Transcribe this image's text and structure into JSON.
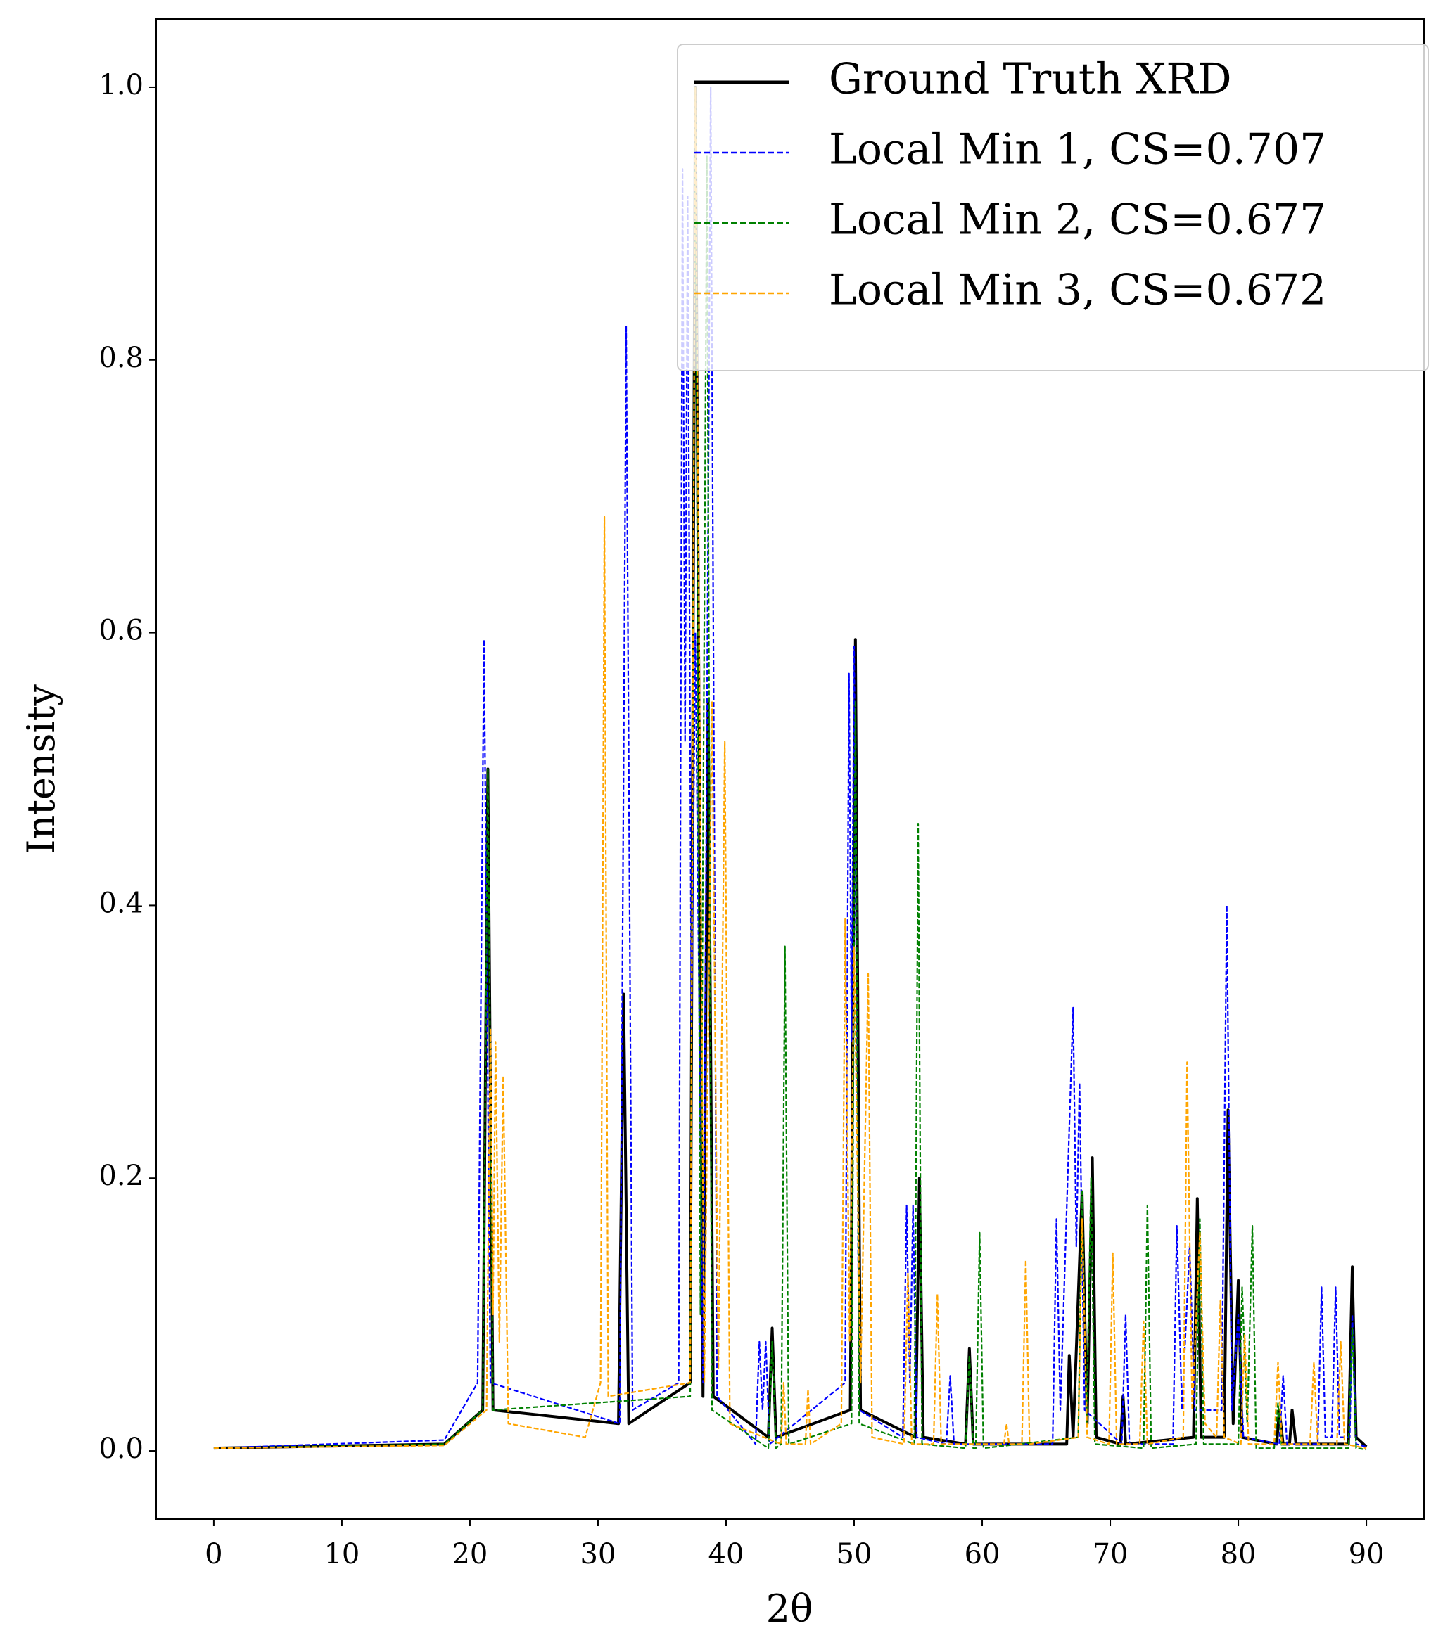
{
  "chart_data": {
    "type": "line",
    "xlabel": "2θ",
    "ylabel": "Intensity",
    "xlim": [
      -4.5,
      94.5
    ],
    "ylim": [
      -0.05,
      1.05
    ],
    "xticks": [
      0,
      10,
      20,
      30,
      40,
      50,
      60,
      70,
      80,
      90
    ],
    "yticks": [
      {
        "value": 0,
        "label": "0.0"
      },
      0.2,
      0.4,
      0.6,
      0.8,
      {
        "value": 1,
        "label": "1.0"
      }
    ],
    "legend": "upper right",
    "grid": false,
    "series": [
      {
        "name": "Ground Truth XRD",
        "color": "#000000",
        "linestyle": "solid",
        "x": [
          0,
          18,
          21.0,
          21.4,
          21.8,
          31.6,
          32.0,
          32.4,
          37.2,
          37.6,
          38.2,
          38.6,
          39.0,
          43.3,
          43.6,
          43.9,
          49.7,
          50.1,
          50.5,
          54.8,
          55.1,
          55.4,
          58.7,
          59.0,
          59.3,
          66.6,
          66.8,
          67.1,
          67.8,
          68.2,
          68.6,
          68.9,
          70.8,
          71.0,
          71.2,
          76.5,
          76.8,
          77.1,
          78.9,
          79.2,
          79.6,
          80.0,
          80.3,
          83.0,
          83.2,
          83.5,
          84.0,
          84.2,
          84.5,
          88.6,
          88.9,
          89.2,
          90
        ],
        "values": [
          0.002,
          0.005,
          0.03,
          0.5,
          0.03,
          0.02,
          0.335,
          0.02,
          0.05,
          1.0,
          0.04,
          0.55,
          0.04,
          0.01,
          0.09,
          0.01,
          0.03,
          0.595,
          0.03,
          0.01,
          0.2,
          0.01,
          0.005,
          0.075,
          0.005,
          0.005,
          0.07,
          0.01,
          0.19,
          0.02,
          0.215,
          0.01,
          0.005,
          0.04,
          0.005,
          0.01,
          0.185,
          0.01,
          0.01,
          0.25,
          0.02,
          0.125,
          0.01,
          0.005,
          0.03,
          0.005,
          0.005,
          0.03,
          0.005,
          0.005,
          0.135,
          0.01,
          0.003
        ]
      },
      {
        "name": "Local Min 1, CS=0.707",
        "color": "#0000ff",
        "linestyle": "dashed",
        "x": [
          0,
          18,
          20.6,
          21.1,
          21.6,
          31.7,
          32.2,
          32.7,
          36.3,
          36.6,
          36.8,
          37.0,
          37.3,
          37.6,
          38.2,
          38.8,
          39.3,
          42.3,
          42.6,
          42.85,
          43.1,
          43.4,
          49.3,
          49.6,
          49.8,
          50.0,
          50.4,
          53.8,
          54.1,
          54.35,
          54.6,
          54.9,
          57.2,
          57.5,
          57.8,
          65.5,
          65.8,
          66.1,
          67.1,
          67.35,
          67.6,
          68.0,
          70.9,
          71.2,
          71.5,
          74.9,
          75.2,
          75.6,
          76.2,
          76.6,
          78.7,
          79.1,
          79.5,
          80.0,
          80.4,
          83.2,
          83.5,
          83.8,
          86.2,
          86.5,
          86.8,
          87.3,
          87.6,
          87.9,
          88.7,
          88.9,
          89.2,
          90
        ],
        "values": [
          0.002,
          0.008,
          0.05,
          0.595,
          0.05,
          0.02,
          0.825,
          0.03,
          0.05,
          0.94,
          0.52,
          0.92,
          0.3,
          0.6,
          0.05,
          1.0,
          0.04,
          0.005,
          0.08,
          0.03,
          0.08,
          0.005,
          0.05,
          0.57,
          0.3,
          0.59,
          0.03,
          0.01,
          0.18,
          0.05,
          0.18,
          0.01,
          0.005,
          0.055,
          0.005,
          0.005,
          0.17,
          0.03,
          0.325,
          0.15,
          0.27,
          0.03,
          0.005,
          0.1,
          0.005,
          0.005,
          0.165,
          0.03,
          0.15,
          0.03,
          0.03,
          0.4,
          0.03,
          0.1,
          0.01,
          0.005,
          0.055,
          0.005,
          0.005,
          0.12,
          0.01,
          0.01,
          0.12,
          0.01,
          0.01,
          0.1,
          0.005,
          0.003
        ]
      },
      {
        "name": "Local Min 2, CS=0.677",
        "color": "#008000",
        "linestyle": "dashed",
        "x": [
          0,
          18,
          21.0,
          21.4,
          21.8,
          37.2,
          37.6,
          38.0,
          38.5,
          38.9,
          43.3,
          43.6,
          43.9,
          44.3,
          44.6,
          44.9,
          49.8,
          50.1,
          50.4,
          54.7,
          55.0,
          55.3,
          58.7,
          59.0,
          59.3,
          59.5,
          59.8,
          60.1,
          67.5,
          67.8,
          68.15,
          68.5,
          68.8,
          72.6,
          72.9,
          73.2,
          76.7,
          77.0,
          77.3,
          80.0,
          80.3,
          80.7,
          81.1,
          81.4,
          82.8,
          83.1,
          83.4,
          88.6,
          88.9,
          89.2,
          90
        ],
        "values": [
          0.002,
          0.005,
          0.03,
          0.5,
          0.03,
          0.04,
          1.0,
          0.1,
          0.95,
          0.03,
          0.002,
          0.08,
          0.002,
          0.005,
          0.37,
          0.005,
          0.02,
          0.55,
          0.02,
          0.005,
          0.46,
          0.005,
          0.002,
          0.07,
          0.002,
          0.002,
          0.16,
          0.002,
          0.01,
          0.19,
          0.02,
          0.2,
          0.005,
          0.002,
          0.18,
          0.002,
          0.005,
          0.17,
          0.005,
          0.005,
          0.12,
          0.02,
          0.165,
          0.002,
          0.002,
          0.035,
          0.002,
          0.002,
          0.09,
          0.002,
          0.001
        ]
      },
      {
        "name": "Local Min 3, CS=0.672",
        "color": "#ffa500",
        "linestyle": "dashed",
        "x": [
          0,
          18,
          21.3,
          21.6,
          21.8,
          22.0,
          22.3,
          22.6,
          23.0,
          29.0,
          30.2,
          30.5,
          30.8,
          37.2,
          37.6,
          38.3,
          38.9,
          39.4,
          39.9,
          40.3,
          44.3,
          44.5,
          44.7,
          46.2,
          46.4,
          46.6,
          49.0,
          49.3,
          49.65,
          50.0,
          50.5,
          51.1,
          51.4,
          53.9,
          54.2,
          54.5,
          56.2,
          56.5,
          56.8,
          61.7,
          61.9,
          62.1,
          63.1,
          63.4,
          63.7,
          67.5,
          67.8,
          68.2,
          69.9,
          70.2,
          70.5,
          72.3,
          72.6,
          72.9,
          75.7,
          76.0,
          76.4,
          77.0,
          77.4,
          78.3,
          78.6,
          78.9,
          80.2,
          80.5,
          80.8,
          82.8,
          83.1,
          83.4,
          85.6,
          85.9,
          86.2,
          87.7,
          88.0,
          88.3,
          90
        ],
        "values": [
          0.002,
          0.004,
          0.03,
          0.31,
          0.1,
          0.3,
          0.08,
          0.275,
          0.02,
          0.01,
          0.05,
          0.685,
          0.04,
          0.05,
          1.0,
          0.05,
          0.55,
          0.06,
          0.52,
          0.02,
          0.005,
          0.05,
          0.005,
          0.005,
          0.045,
          0.005,
          0.02,
          0.39,
          0.08,
          0.37,
          0.05,
          0.35,
          0.01,
          0.005,
          0.13,
          0.005,
          0.005,
          0.115,
          0.005,
          0.005,
          0.02,
          0.005,
          0.005,
          0.14,
          0.005,
          0.01,
          0.17,
          0.01,
          0.005,
          0.145,
          0.005,
          0.005,
          0.095,
          0.005,
          0.01,
          0.285,
          0.03,
          0.16,
          0.02,
          0.01,
          0.11,
          0.01,
          0.005,
          0.085,
          0.005,
          0.005,
          0.065,
          0.005,
          0.005,
          0.065,
          0.005,
          0.005,
          0.08,
          0.005,
          0.002
        ]
      }
    ]
  }
}
